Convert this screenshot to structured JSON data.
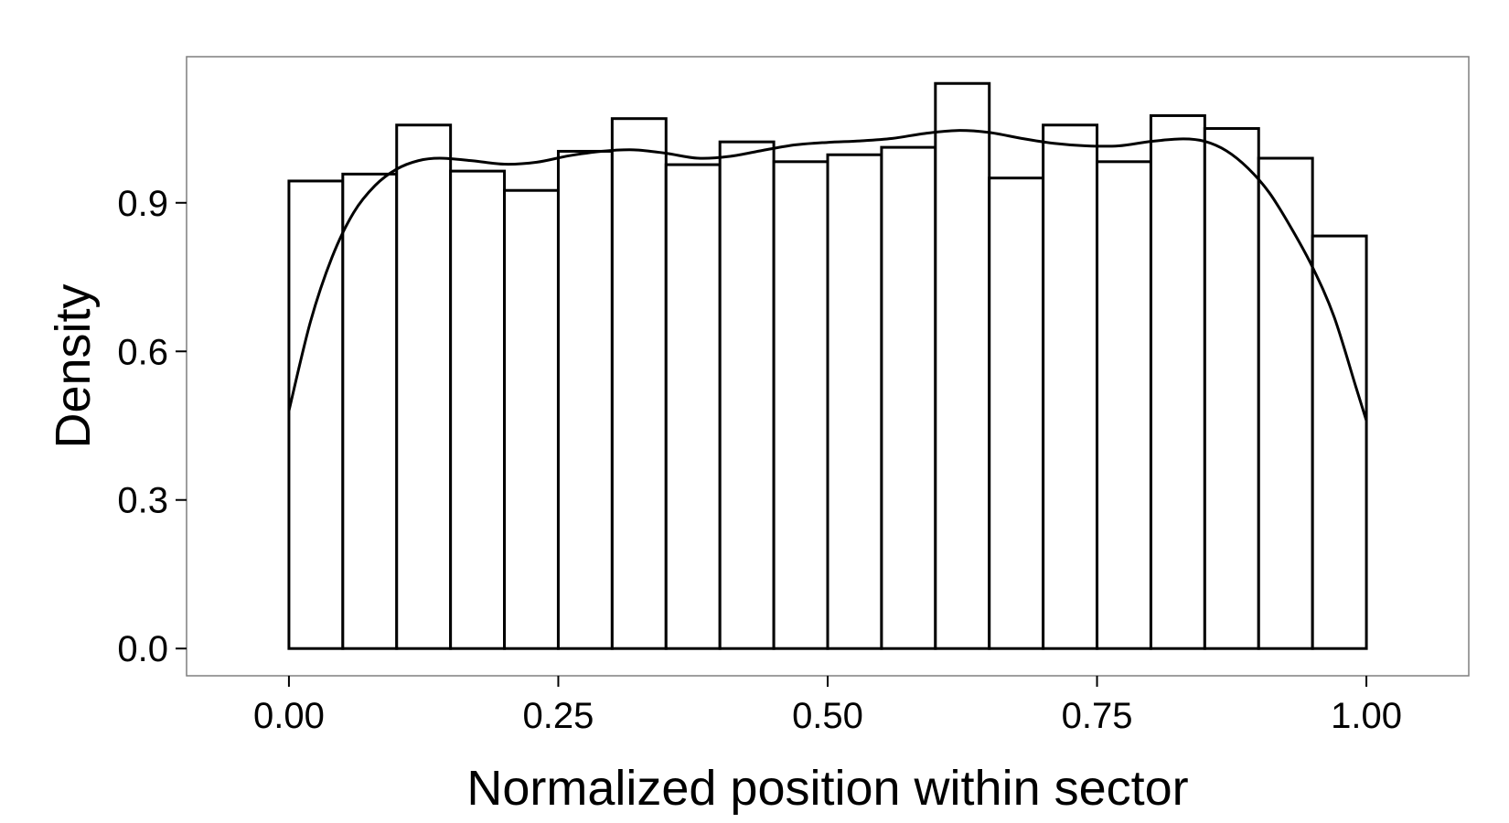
{
  "chart_data": {
    "type": "bar",
    "subtype": "histogram-with-density-curve",
    "xlabel": "Normalized position within sector",
    "ylabel": "Density",
    "xlim": [
      -0.095,
      1.095
    ],
    "ylim": [
      -0.055,
      1.195
    ],
    "x_ticks": [
      0.0,
      0.25,
      0.5,
      0.75,
      1.0
    ],
    "x_tick_labels": [
      "0.00",
      "0.25",
      "0.50",
      "0.75",
      "1.00"
    ],
    "y_ticks": [
      0.0,
      0.3,
      0.6,
      0.9
    ],
    "y_tick_labels": [
      "0.0",
      "0.3",
      "0.6",
      "0.9"
    ],
    "grid": false,
    "legend": "none",
    "bin_width": 0.05,
    "bins": [
      {
        "x0": 0.0,
        "x1": 0.05,
        "value": 0.944
      },
      {
        "x0": 0.05,
        "x1": 0.1,
        "value": 0.958
      },
      {
        "x0": 0.1,
        "x1": 0.15,
        "value": 1.057
      },
      {
        "x0": 0.15,
        "x1": 0.2,
        "value": 0.964
      },
      {
        "x0": 0.2,
        "x1": 0.25,
        "value": 0.925
      },
      {
        "x0": 0.25,
        "x1": 0.3,
        "value": 1.004
      },
      {
        "x0": 0.3,
        "x1": 0.35,
        "value": 1.07
      },
      {
        "x0": 0.35,
        "x1": 0.4,
        "value": 0.977
      },
      {
        "x0": 0.4,
        "x1": 0.45,
        "value": 1.023
      },
      {
        "x0": 0.45,
        "x1": 0.5,
        "value": 0.983
      },
      {
        "x0": 0.5,
        "x1": 0.55,
        "value": 0.997
      },
      {
        "x0": 0.55,
        "x1": 0.6,
        "value": 1.012
      },
      {
        "x0": 0.6,
        "x1": 0.65,
        "value": 1.141
      },
      {
        "x0": 0.65,
        "x1": 0.7,
        "value": 0.95
      },
      {
        "x0": 0.7,
        "x1": 0.75,
        "value": 1.057
      },
      {
        "x0": 0.75,
        "x1": 0.8,
        "value": 0.983
      },
      {
        "x0": 0.8,
        "x1": 0.85,
        "value": 1.076
      },
      {
        "x0": 0.85,
        "x1": 0.9,
        "value": 1.05
      },
      {
        "x0": 0.9,
        "x1": 0.95,
        "value": 0.99
      },
      {
        "x0": 0.95,
        "x1": 1.0,
        "value": 0.833
      }
    ],
    "density_curve": [
      {
        "x": 0.0,
        "y": 0.48
      },
      {
        "x": 0.02,
        "y": 0.66
      },
      {
        "x": 0.04,
        "y": 0.79
      },
      {
        "x": 0.06,
        "y": 0.88
      },
      {
        "x": 0.08,
        "y": 0.935
      },
      {
        "x": 0.1,
        "y": 0.968
      },
      {
        "x": 0.12,
        "y": 0.985
      },
      {
        "x": 0.14,
        "y": 0.99
      },
      {
        "x": 0.17,
        "y": 0.985
      },
      {
        "x": 0.2,
        "y": 0.978
      },
      {
        "x": 0.23,
        "y": 0.982
      },
      {
        "x": 0.26,
        "y": 0.995
      },
      {
        "x": 0.29,
        "y": 1.004
      },
      {
        "x": 0.32,
        "y": 1.007
      },
      {
        "x": 0.35,
        "y": 1.0
      },
      {
        "x": 0.38,
        "y": 0.99
      },
      {
        "x": 0.41,
        "y": 0.994
      },
      {
        "x": 0.44,
        "y": 1.006
      },
      {
        "x": 0.47,
        "y": 1.017
      },
      {
        "x": 0.5,
        "y": 1.022
      },
      {
        "x": 0.53,
        "y": 1.025
      },
      {
        "x": 0.56,
        "y": 1.03
      },
      {
        "x": 0.59,
        "y": 1.04
      },
      {
        "x": 0.62,
        "y": 1.046
      },
      {
        "x": 0.65,
        "y": 1.042
      },
      {
        "x": 0.68,
        "y": 1.03
      },
      {
        "x": 0.71,
        "y": 1.02
      },
      {
        "x": 0.74,
        "y": 1.015
      },
      {
        "x": 0.77,
        "y": 1.015
      },
      {
        "x": 0.8,
        "y": 1.024
      },
      {
        "x": 0.83,
        "y": 1.029
      },
      {
        "x": 0.85,
        "y": 1.024
      },
      {
        "x": 0.87,
        "y": 1.005
      },
      {
        "x": 0.89,
        "y": 0.97
      },
      {
        "x": 0.91,
        "y": 0.92
      },
      {
        "x": 0.93,
        "y": 0.85
      },
      {
        "x": 0.95,
        "y": 0.77
      },
      {
        "x": 0.97,
        "y": 0.67
      },
      {
        "x": 0.99,
        "y": 0.53
      },
      {
        "x": 1.0,
        "y": 0.46
      }
    ],
    "colors": {
      "bar_fill": "#ffffff",
      "bar_stroke": "#000000",
      "curve": "#000000",
      "panel_border": "#7f7f7f",
      "background": "#ffffff"
    }
  }
}
